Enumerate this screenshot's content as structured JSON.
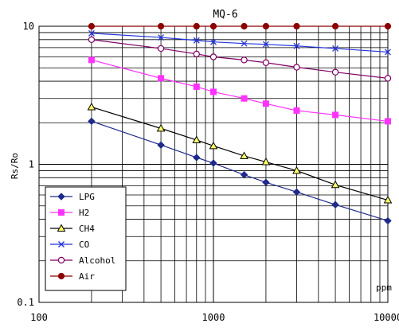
{
  "chart_data": {
    "type": "line",
    "title": "MQ-6",
    "xlabel": "ppm",
    "ylabel": "Rs/Ro",
    "x_scale": "log",
    "y_scale": "log",
    "xlim": [
      100,
      10000
    ],
    "ylim": [
      0.1,
      10
    ],
    "x_ticks": [
      "100",
      "1000",
      "10000"
    ],
    "y_ticks": [
      "0.1",
      "1",
      "10"
    ],
    "grid": true,
    "legend_position": "bottom-left",
    "series": [
      {
        "name": "LPG",
        "color": "#1f2a8a",
        "marker": "diamond",
        "x": [
          200,
          500,
          800,
          1000,
          1500,
          2000,
          3000,
          5000,
          10000
        ],
        "y": [
          2.05,
          1.38,
          1.12,
          1.02,
          0.84,
          0.74,
          0.63,
          0.51,
          0.39
        ]
      },
      {
        "name": "H2",
        "color": "#ff33ff",
        "marker": "square",
        "x": [
          200,
          500,
          800,
          1000,
          1500,
          2000,
          3000,
          5000,
          10000
        ],
        "y": [
          5.7,
          4.2,
          3.65,
          3.35,
          3.0,
          2.75,
          2.45,
          2.28,
          2.05
        ]
      },
      {
        "name": "CH4",
        "color": "#000000",
        "marker": "triangle",
        "fill": "#ffff66",
        "x": [
          200,
          500,
          800,
          1000,
          1500,
          2000,
          3000,
          5000,
          10000
        ],
        "y": [
          2.6,
          1.82,
          1.5,
          1.36,
          1.15,
          1.04,
          0.9,
          0.71,
          0.55
        ]
      },
      {
        "name": "CO",
        "color": "#2233dd",
        "marker": "x",
        "x": [
          200,
          500,
          800,
          1000,
          1500,
          2000,
          3000,
          5000,
          10000
        ],
        "y": [
          8.9,
          8.3,
          7.9,
          7.7,
          7.5,
          7.4,
          7.2,
          6.9,
          6.5
        ]
      },
      {
        "name": "Alcohol",
        "color": "#800066",
        "marker": "circle-open",
        "x": [
          200,
          500,
          800,
          1000,
          1500,
          2000,
          3000,
          5000,
          10000
        ],
        "y": [
          8.0,
          6.9,
          6.3,
          6.0,
          5.7,
          5.45,
          5.05,
          4.65,
          4.2
        ]
      },
      {
        "name": "Air",
        "color": "#8b0000",
        "marker": "circle",
        "x": [
          200,
          500,
          800,
          1000,
          1500,
          2000,
          3000,
          5000,
          10000
        ],
        "y": [
          10,
          10,
          10,
          10,
          10,
          10,
          10,
          10,
          10
        ]
      }
    ]
  }
}
